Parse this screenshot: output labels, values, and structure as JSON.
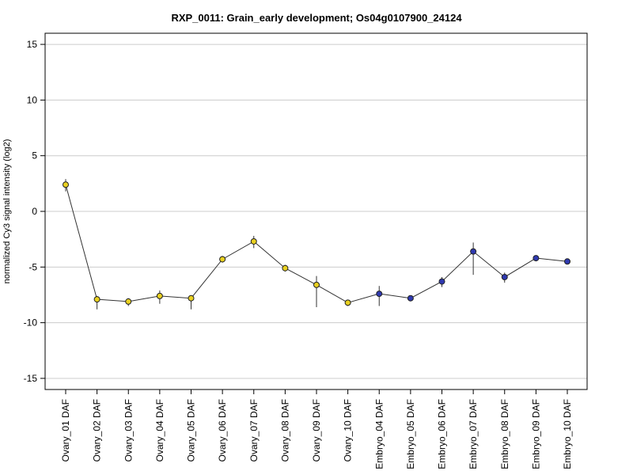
{
  "chart_data": {
    "type": "line",
    "title": "RXP_0011: Grain_early development; Os04g0107900_24124",
    "xlabel": "",
    "ylabel": "normalized Cy3 signal intensity (log2)",
    "ylim": [
      -16,
      16
    ],
    "yticks": [
      15,
      10,
      5,
      0,
      -5,
      -10,
      -15
    ],
    "ytick_labels": [
      "15",
      "10",
      "5",
      "0",
      "-5",
      "-10",
      "-15"
    ],
    "grid": true,
    "categories": [
      "Ovary_01 DAF",
      "Ovary_02 DAF",
      "Ovary_03 DAF",
      "Ovary_04 DAF",
      "Ovary_05 DAF",
      "Ovary_06 DAF",
      "Ovary_07 DAF",
      "Ovary_08 DAF",
      "Ovary_09 DAF",
      "Ovary_10 DAF",
      "Embryo_04 DAF",
      "Embryo_05 DAF",
      "Embryo_06 DAF",
      "Embryo_07 DAF",
      "Embryo_08 DAF",
      "Embryo_09 DAF",
      "Embryo_10 DAF"
    ],
    "values": [
      2.4,
      -7.9,
      -8.1,
      -7.6,
      -7.8,
      -4.3,
      -2.7,
      -5.1,
      -6.6,
      -8.2,
      -7.4,
      -7.8,
      -6.3,
      -3.6,
      -5.9,
      -4.2,
      -4.5
    ],
    "error_low": [
      1.8,
      -8.8,
      -8.5,
      -8.3,
      -8.8,
      -4.6,
      -3.3,
      -5.4,
      -8.6,
      -8.5,
      -8.5,
      -7.9,
      -6.8,
      -5.7,
      -6.4,
      -4.3,
      -4.6
    ],
    "error_high": [
      2.9,
      -7.6,
      -7.8,
      -7.1,
      -7.6,
      -4.0,
      -2.2,
      -4.8,
      -5.8,
      -8.0,
      -6.7,
      -7.7,
      -5.9,
      -2.8,
      -5.5,
      -4.1,
      -4.4
    ],
    "point_colors": [
      "#e8d020",
      "#e8d020",
      "#e8d020",
      "#e8d020",
      "#e8d020",
      "#e8d020",
      "#e8d020",
      "#e8d020",
      "#e8d020",
      "#e8d020",
      "#2f39b0",
      "#2f39b0",
      "#2f39b0",
      "#2f39b0",
      "#2f39b0",
      "#2f39b0",
      "#2f39b0"
    ],
    "line_color": "#333333"
  }
}
